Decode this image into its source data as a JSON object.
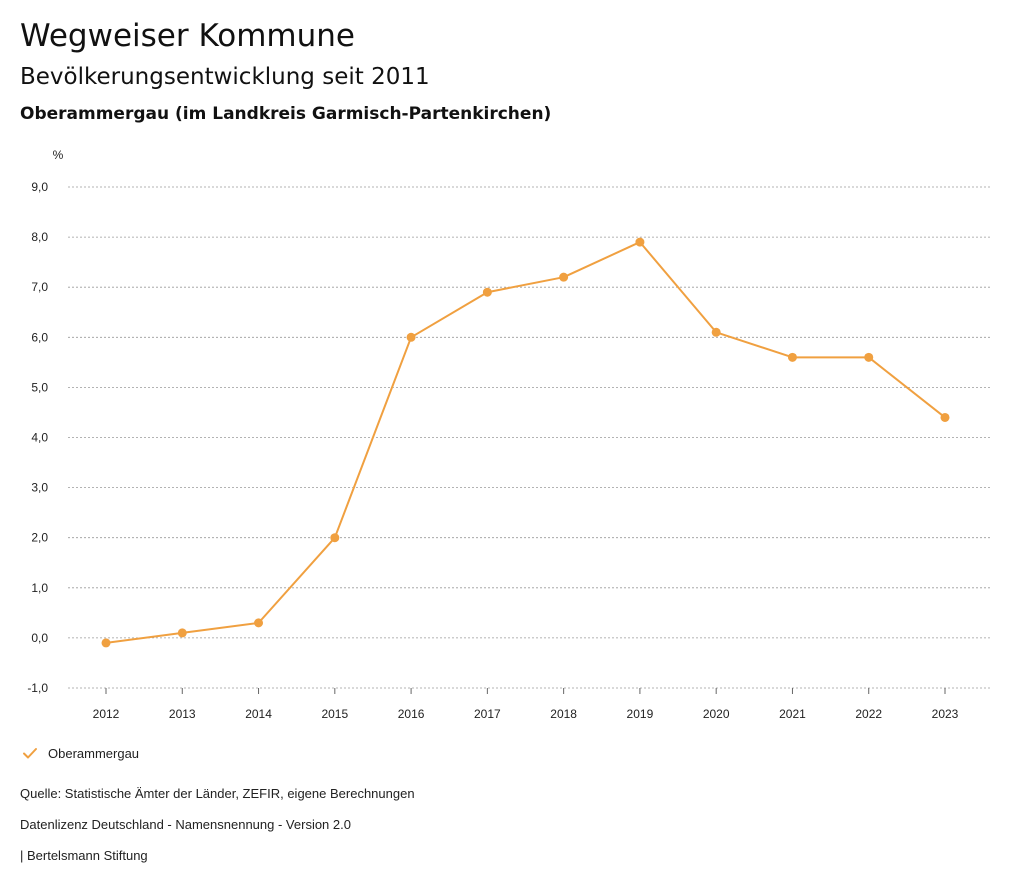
{
  "header": {
    "title": "Wegweiser Kommune",
    "subtitle": "Bevölkerungsentwicklung seit 2011",
    "place": "Oberammergau (im Landkreis Garmisch-Partenkirchen)"
  },
  "chart_data": {
    "type": "line",
    "categories": [
      "2012",
      "2013",
      "2014",
      "2015",
      "2016",
      "2017",
      "2018",
      "2019",
      "2020",
      "2021",
      "2022",
      "2023"
    ],
    "series": [
      {
        "name": "Oberammergau",
        "color": "#f0a040",
        "values": [
          -0.1,
          0.1,
          0.3,
          2.0,
          6.0,
          6.9,
          7.2,
          7.9,
          6.1,
          5.6,
          5.6,
          4.4
        ]
      }
    ],
    "unit": "%",
    "ylim": [
      -1,
      9
    ],
    "yticks": [
      "-1,0",
      "0,0",
      "1,0",
      "2,0",
      "3,0",
      "4,0",
      "5,0",
      "6,0",
      "7,0",
      "8,0",
      "9,0"
    ],
    "grid": true,
    "legend_position": "bottom-left"
  },
  "legend": {
    "label": "Oberammergau",
    "icon": "check-icon"
  },
  "footer": {
    "source": "Quelle: Statistische Ämter der Länder, ZEFIR, eigene Berechnungen",
    "license": "Datenlizenz Deutschland - Namensnennung - Version 2.0",
    "publisher": "| Bertelsmann Stiftung"
  }
}
